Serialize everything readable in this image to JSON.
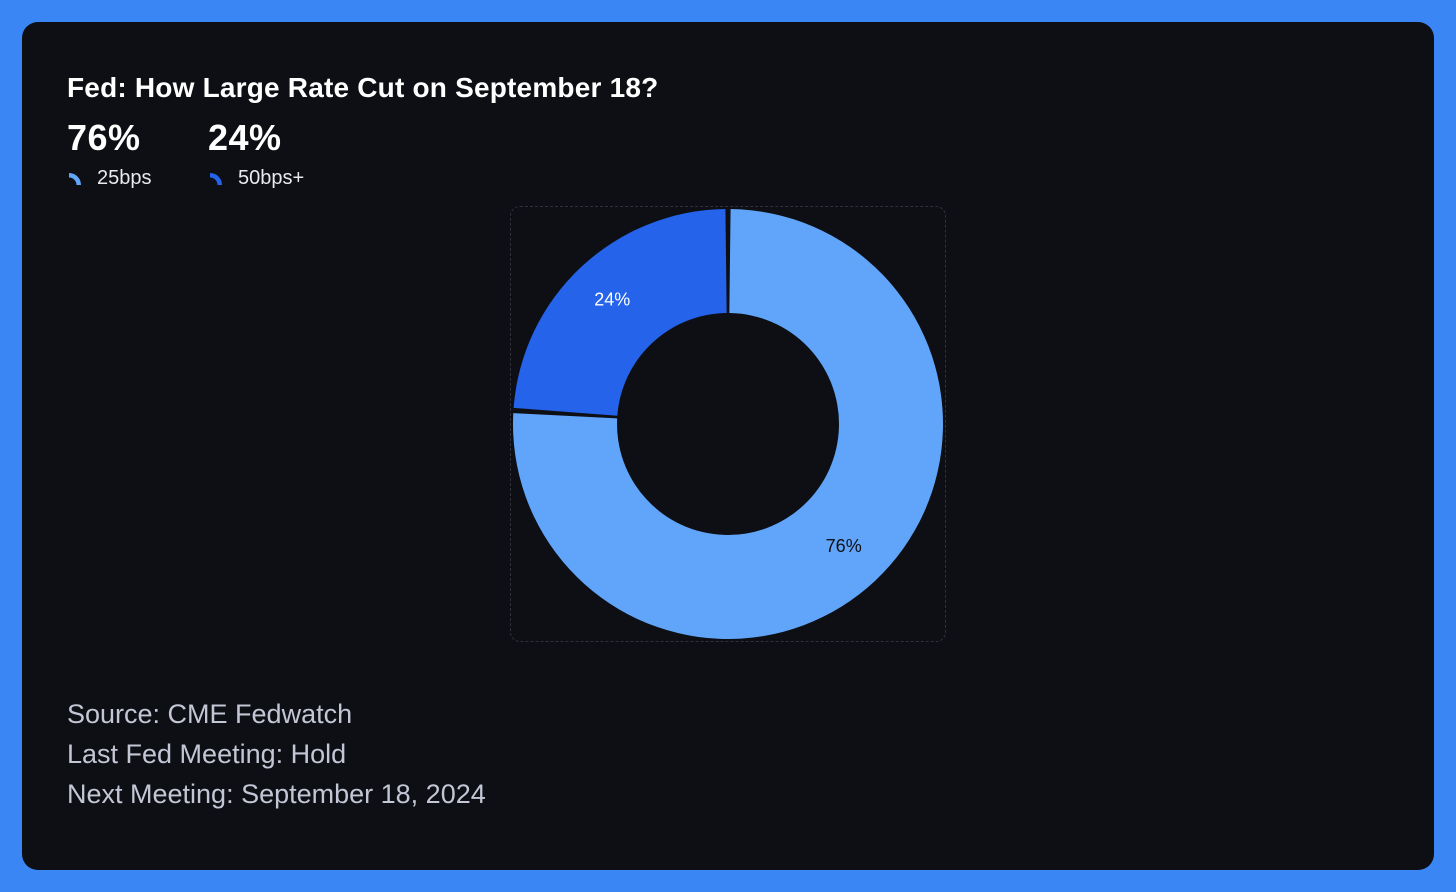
{
  "title": "Fed: How Large Rate Cut on September 18?",
  "colors": {
    "frame": "#3b86f5",
    "background": "#0d0f14",
    "slice_25bps": "#60a5fa",
    "slice_50bps": "#2563eb"
  },
  "chart_data": {
    "type": "pie",
    "style": "donut",
    "categories": [
      "25bps",
      "50bps+"
    ],
    "values": [
      76,
      24
    ],
    "value_labels": [
      "76%",
      "24%"
    ],
    "colors": [
      "#60a5fa",
      "#2563eb"
    ],
    "stats": [
      {
        "value": "76%",
        "label": "25bps"
      },
      {
        "value": "24%",
        "label": "50bps+"
      }
    ]
  },
  "footer": {
    "source": "Source: CME Fedwatch",
    "last_meeting": "Last Fed Meeting: Hold",
    "next_meeting": "Next Meeting: September 18, 2024"
  }
}
